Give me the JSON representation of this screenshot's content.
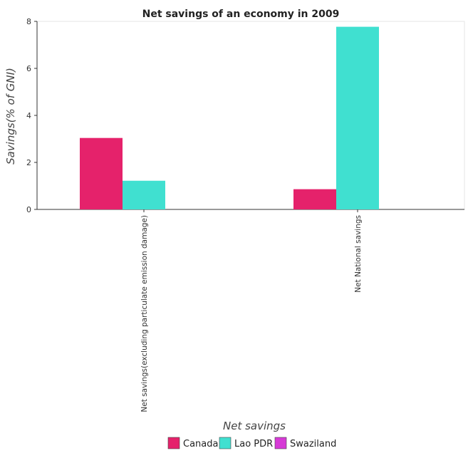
{
  "chart_data": {
    "type": "bar",
    "title": "Net savings of an economy in 2009",
    "xlabel": "Net savings",
    "ylabel": "Savings(% of GNI)",
    "categories": [
      "Net savings(excluding particulate emission damage)",
      "Net National savings"
    ],
    "series": [
      {
        "name": "Canada",
        "color": "#e5226b",
        "values": [
          3.04,
          0.86
        ]
      },
      {
        "name": "Lao PDR",
        "color": "#40e0d0",
        "values": [
          1.22,
          7.77
        ]
      },
      {
        "name": "Swaziland",
        "color": "#d63ad6",
        "values": [
          0,
          0
        ]
      }
    ],
    "ylim": [
      0,
      8
    ],
    "yticks": [
      0,
      2,
      4,
      6,
      8
    ],
    "grid": false,
    "legend": "bottom-center"
  }
}
